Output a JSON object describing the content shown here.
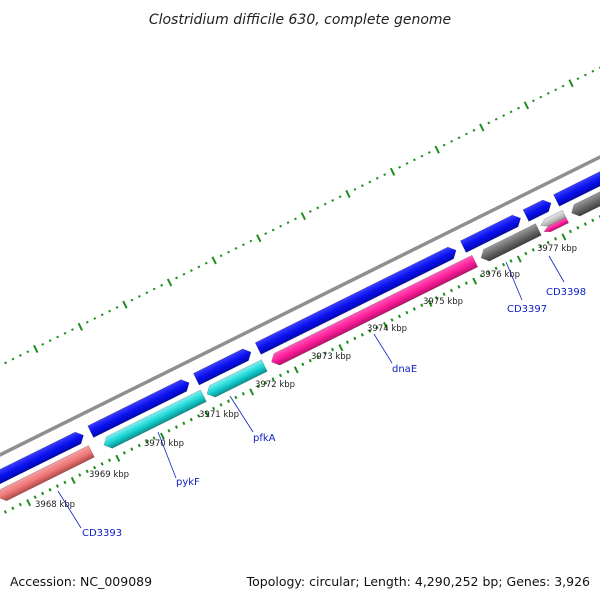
{
  "header": {
    "title": "Clostridium difficile 630, complete genome"
  },
  "footer": {
    "accession": "Accession: NC_009089",
    "summary": "Topology: circular; Length: 4,290,252 bp; Genes: 3,926"
  },
  "colors": {
    "backbone": "#8f8f8f",
    "forward_cds": "#0b10ef",
    "reverse_pink": "#ff1e9c",
    "reverse_salmon": "#f07878",
    "reverse_cyan": "#1cd6d6",
    "reverse_gray": "#6a6a6a",
    "reverse_lightgray": "#c8c8c8",
    "tick": "#1e8f1e",
    "label": "#1020c0"
  },
  "scale": {
    "kbp_labels": [
      "3968 kbp",
      "3969 kbp",
      "3970 kbp",
      "3971 kbp",
      "3972 kbp",
      "3973 kbp",
      "3974 kbp",
      "3975 kbp",
      "3976 kbp",
      "3977 kbp"
    ]
  },
  "genes": [
    {
      "label": "CD3393"
    },
    {
      "label": "pykF"
    },
    {
      "label": "pfkA"
    },
    {
      "label": "dnaE"
    },
    {
      "label": "CD3397"
    },
    {
      "label": "CD3398"
    }
  ]
}
